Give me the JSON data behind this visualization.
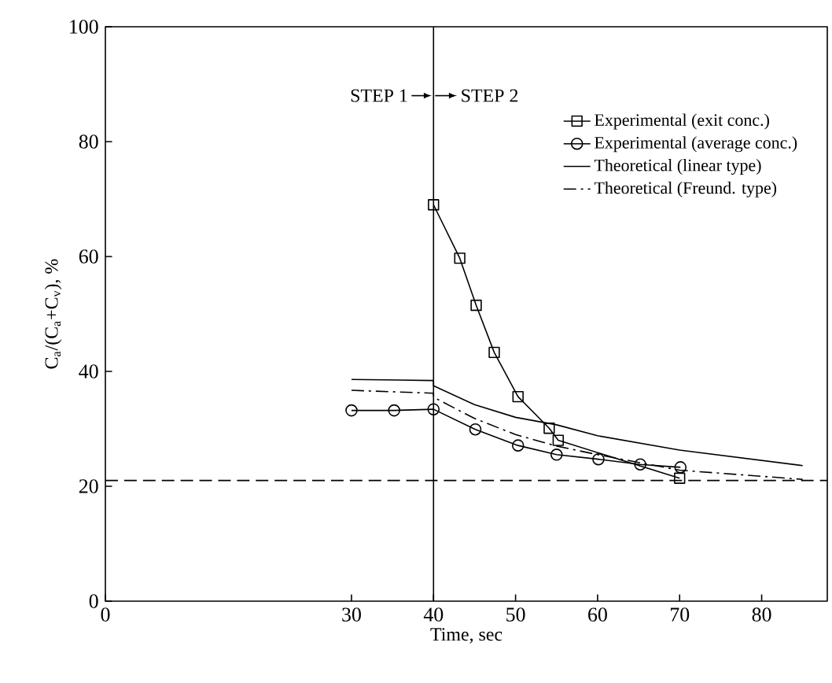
{
  "chart_data": {
    "type": "line",
    "xlabel": "Time, sec",
    "ylabel": "C$_{a}$/(C$_{a}$+C$_{v}$), %",
    "xlim": [
      0,
      88
    ],
    "ylim": [
      0,
      100
    ],
    "xticks": [
      0,
      30,
      40,
      50,
      60,
      70,
      80
    ],
    "yticks": [
      0,
      20,
      40,
      60,
      80,
      100
    ],
    "grid": false,
    "legend": "top right",
    "annotations": [
      "STEP 1",
      "STEP 2"
    ],
    "ref_lines": [
      {
        "axis": "x",
        "value": 40,
        "label": null,
        "color": "#000000",
        "line_style": "solid"
      },
      {
        "axis": "y",
        "value": 21,
        "label": null,
        "color": "#000000",
        "line_style": "dashed"
      }
    ],
    "series": [
      {
        "name": "Experimental (exit conc.)",
        "color": "#000000",
        "marker": "square",
        "line_style": "solid",
        "x": [
          40,
          43.2,
          45.2,
          47.4,
          50.3,
          54.1,
          55.2,
          70
        ],
        "values": [
          69,
          59.7,
          51.5,
          43.3,
          35.6,
          30.1,
          28,
          21.4
        ]
      },
      {
        "name": "Experimental (average conc.)",
        "color": "#000000",
        "marker": "circle",
        "line_style": "solid",
        "x": [
          30,
          35.2,
          40,
          45.1,
          50.3,
          55,
          60.1,
          65.2,
          70.1
        ],
        "values": [
          33.2,
          33.2,
          33.4,
          29.9,
          27.1,
          25.5,
          24.7,
          23.8,
          23.3
        ]
      },
      {
        "name": "Theoretical (linear type)",
        "color": "#000000",
        "marker": "none",
        "line_style": "solid",
        "x": [
          30,
          40,
          40,
          45,
          50,
          55,
          60,
          70,
          85
        ],
        "values": [
          38.6,
          38.4,
          37.5,
          34.2,
          32,
          30.7,
          28.8,
          26.3,
          23.6
        ]
      },
      {
        "name": "Theoretical (Freund. type)",
        "color": "#000000",
        "marker": "none",
        "line_style": "dashdot",
        "x": [
          30,
          40,
          40,
          45,
          50,
          55,
          60,
          70,
          85
        ],
        "values": [
          36.7,
          36.2,
          35.5,
          31.8,
          29,
          27,
          25.5,
          22.8,
          21.2
        ]
      }
    ]
  }
}
